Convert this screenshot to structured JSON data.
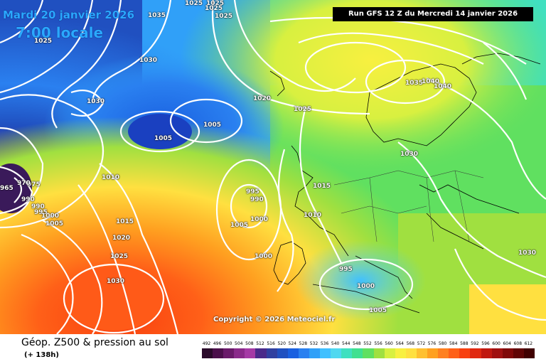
{
  "header": {
    "date_line": "Mardi 20 janvier 2026",
    "time_line": "7:00 locale",
    "run_info": "Run GFS 12 Z du Mercredi 14 janvier 2026"
  },
  "copyright": "Copyright © 2026 Meteociel.fr",
  "footer": {
    "product_title": "Géop. Z500 & pression au sol",
    "forecast_hour": "(+ 138h)"
  },
  "isobar_labels": [
    "1025",
    "1025",
    "1035",
    "1025",
    "1025",
    "1030",
    "1025",
    "1030",
    "1020",
    "1025",
    "1035",
    "1040",
    "1040",
    "1005",
    "1005",
    "1030",
    "1010",
    "1015",
    "1010",
    "975",
    "970",
    "965",
    "990",
    "990",
    "995",
    "1000",
    "1005",
    "995",
    "990",
    "1005",
    "1000",
    "1000",
    "1015",
    "1020",
    "1025",
    "1030",
    "995",
    "1000",
    "1005",
    "1030"
  ],
  "scale": {
    "labels": [
      "492",
      "496",
      "500",
      "504",
      "508",
      "512",
      "516",
      "520",
      "524",
      "528",
      "532",
      "536",
      "540",
      "544",
      "548",
      "552",
      "556",
      "560",
      "564",
      "568",
      "572",
      "576",
      "580",
      "584",
      "588",
      "592",
      "596",
      "600",
      "604",
      "608",
      "612"
    ],
    "colors": [
      "#2a0a2a",
      "#4b0f4b",
      "#6a1a6a",
      "#8a2a8a",
      "#a53aa5",
      "#4a2a8a",
      "#3040a0",
      "#2050c0",
      "#1a60e0",
      "#2a80f0",
      "#30a0f8",
      "#40c0ff",
      "#50d8f0",
      "#40e0c0",
      "#40e090",
      "#60e060",
      "#a0e040",
      "#d8f040",
      "#f8f040",
      "#ffe040",
      "#ffc030",
      "#ffa020",
      "#ff8020",
      "#ff6018",
      "#f84010",
      "#e02810",
      "#c01810",
      "#a01010",
      "#800808",
      "#600404",
      "#400000"
    ]
  }
}
